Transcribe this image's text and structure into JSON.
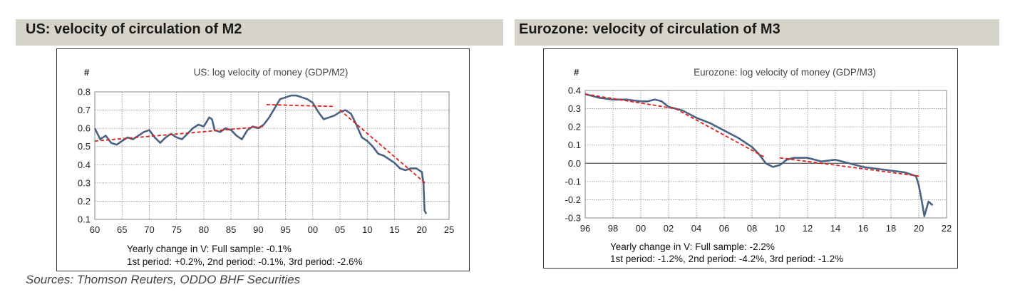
{
  "section_titles": {
    "us": "US: velocity of circulation of M2",
    "ez": "Eurozone: velocity of circulation of M3"
  },
  "source": "Sources: Thomson Reuters, ODDO BHF Securities",
  "colors": {
    "series": "#4a6283",
    "trend": "#e3201b",
    "grid": "#8a8a8a",
    "band": "#d6d3c9"
  },
  "chart_data": [
    {
      "id": "us",
      "type": "line",
      "title": "US: log velocity of money (GDP/M2)",
      "ylabel": "#",
      "xlabel": "",
      "xlim": [
        60,
        25
      ],
      "ylim": [
        0.1,
        0.8
      ],
      "x_ticks": [
        "60",
        "65",
        "70",
        "75",
        "80",
        "85",
        "90",
        "95",
        "00",
        "05",
        "10",
        "15",
        "20",
        "25"
      ],
      "y_ticks": [
        "0.8",
        "0.7",
        "0.6",
        "0.5",
        "0.4",
        "0.3",
        "0.2",
        "0.1"
      ],
      "annotation_line1": "Yearly change in V: Full sample: -0.1%",
      "annotation_line2": "1st period: +0.2%, 2nd period: -0.1%, 3rd period: -2.6%",
      "series": [
        {
          "name": "log velocity of money",
          "x": [
            60,
            61,
            62,
            63,
            64,
            65,
            66,
            67,
            68,
            69,
            70,
            71,
            72,
            73,
            74,
            75,
            76,
            77,
            78,
            79,
            80,
            81,
            81.5,
            82,
            83,
            84,
            85,
            86,
            87,
            88,
            89,
            90,
            91,
            92,
            93,
            94,
            95,
            96,
            97,
            98,
            99,
            100,
            101,
            102,
            103,
            104,
            105,
            106,
            107,
            108,
            109,
            110,
            111,
            112,
            113,
            114,
            115,
            116,
            117,
            118,
            119,
            120,
            120.3,
            120.5,
            120.8
          ],
          "y": [
            0.6,
            0.54,
            0.56,
            0.52,
            0.51,
            0.53,
            0.55,
            0.54,
            0.56,
            0.58,
            0.59,
            0.55,
            0.52,
            0.55,
            0.57,
            0.55,
            0.54,
            0.57,
            0.6,
            0.62,
            0.61,
            0.66,
            0.65,
            0.59,
            0.58,
            0.6,
            0.59,
            0.56,
            0.54,
            0.59,
            0.61,
            0.6,
            0.62,
            0.66,
            0.71,
            0.76,
            0.77,
            0.78,
            0.78,
            0.77,
            0.76,
            0.74,
            0.69,
            0.65,
            0.66,
            0.67,
            0.69,
            0.7,
            0.68,
            0.62,
            0.55,
            0.53,
            0.5,
            0.46,
            0.45,
            0.43,
            0.41,
            0.38,
            0.37,
            0.38,
            0.38,
            0.36,
            0.3,
            0.15,
            0.13
          ]
        }
      ],
      "trend_lines": [
        {
          "x": [
            60,
            91
          ],
          "y": [
            0.53,
            0.61
          ]
        },
        {
          "x": [
            91.5,
            104
          ],
          "y": [
            0.73,
            0.72
          ]
        },
        {
          "x": [
            105,
            120.6
          ],
          "y": [
            0.7,
            0.3
          ]
        }
      ]
    },
    {
      "id": "ez",
      "type": "line",
      "title": "Eurozone: log velocity of money (GDP/M3)",
      "ylabel": "#",
      "xlabel": "",
      "xlim": [
        96,
        22
      ],
      "ylim": [
        -0.3,
        0.4
      ],
      "x_ticks": [
        "96",
        "98",
        "00",
        "02",
        "04",
        "06",
        "08",
        "10",
        "12",
        "14",
        "16",
        "18",
        "20",
        "22"
      ],
      "y_ticks": [
        "0.4",
        "0.3",
        "0.2",
        "0.1",
        "0.0",
        "-0.1",
        "-0.2",
        "-0.3"
      ],
      "annotation_line1": "Yearly change in V: Full sample: -2.2%",
      "annotation_line2": "1st period: -1.2%, 2nd period: -4.2%, 3rd period: -1.2%",
      "series": [
        {
          "name": "log velocity of money",
          "x": [
            96,
            97,
            98,
            99,
            100,
            100.5,
            101,
            101.5,
            102,
            103,
            104,
            105,
            106,
            107,
            108,
            108.5,
            109,
            109.5,
            110,
            110.5,
            111,
            112,
            113,
            114,
            115,
            116,
            117,
            118,
            119,
            119.8,
            120,
            120.2,
            120.4,
            120.7,
            121
          ],
          "y": [
            0.38,
            0.36,
            0.35,
            0.35,
            0.34,
            0.34,
            0.35,
            0.34,
            0.31,
            0.29,
            0.25,
            0.22,
            0.18,
            0.14,
            0.09,
            0.05,
            0.0,
            -0.02,
            -0.01,
            0.02,
            0.03,
            0.03,
            0.01,
            0.02,
            0.0,
            -0.02,
            -0.03,
            -0.04,
            -0.05,
            -0.07,
            -0.12,
            -0.2,
            -0.29,
            -0.21,
            -0.23
          ]
        }
      ],
      "trend_lines": [
        {
          "x": [
            96,
            102.5
          ],
          "y": [
            0.38,
            0.3
          ]
        },
        {
          "x": [
            102.5,
            109
          ],
          "y": [
            0.3,
            0.03
          ]
        },
        {
          "x": [
            110,
            120
          ],
          "y": [
            0.03,
            -0.07
          ]
        }
      ]
    }
  ]
}
